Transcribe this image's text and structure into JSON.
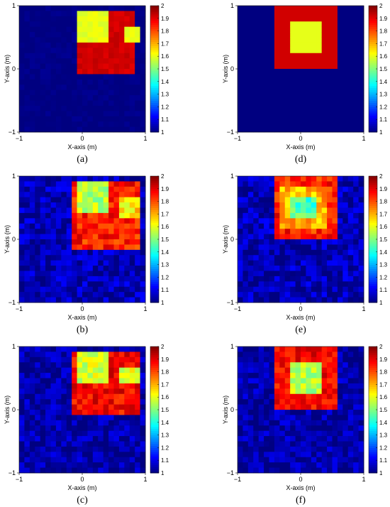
{
  "figure": {
    "colormap": "jet",
    "panels": [
      "(a)",
      "(b)",
      "(c)",
      "(d)",
      "(e)",
      "(f)"
    ]
  },
  "chart_data": [
    {
      "type": "heatmap",
      "label": "(a)",
      "xlabel": "X-axis (m)",
      "ylabel": "Y-axis (m)",
      "xlim": [
        -1,
        1
      ],
      "ylim": [
        -1,
        1
      ],
      "xticks": [
        "−1",
        "0",
        "1"
      ],
      "yticks": [
        "−1",
        "0",
        "1"
      ],
      "colorbar": {
        "min": 1,
        "max": 2,
        "ticks": [
          "1",
          "1.1",
          "1.2",
          "1.3",
          "1.4",
          "1.5",
          "1.6",
          "1.7",
          "1.8",
          "1.9",
          "2"
        ]
      },
      "background": 1.0,
      "regions": [
        {
          "x": [
            -0.1,
            0.85
          ],
          "y": [
            -0.1,
            0.95
          ],
          "value": 1.92
        },
        {
          "x": [
            -0.1,
            0.4
          ],
          "y": [
            0.4,
            0.95
          ],
          "value": 1.6
        },
        {
          "x": [
            0.65,
            0.95
          ],
          "y": [
            0.4,
            0.65
          ],
          "value": 1.6
        }
      ],
      "noise": 0.02
    },
    {
      "type": "heatmap",
      "label": "(b)",
      "xlabel": "X-axis (m)",
      "ylabel": "Y-axis (m)",
      "xlim": [
        -1,
        1
      ],
      "ylim": [
        -1,
        1
      ],
      "xticks": [
        "−1",
        "0",
        "1"
      ],
      "yticks": [
        "−1",
        "0",
        "1"
      ],
      "colorbar": {
        "min": 1,
        "max": 2,
        "ticks": [
          "1",
          "1.1",
          "1.2",
          "1.3",
          "1.4",
          "1.5",
          "1.6",
          "1.7",
          "1.8",
          "1.9",
          "2"
        ]
      },
      "background": 1.05,
      "regions": [
        {
          "x": [
            -0.15,
            0.9
          ],
          "y": [
            -0.15,
            0.95
          ],
          "value": 1.85
        },
        {
          "x": [
            -0.1,
            0.45
          ],
          "y": [
            0.4,
            0.95
          ],
          "value": 1.55
        },
        {
          "x": [
            0.6,
            0.9
          ],
          "y": [
            0.35,
            0.7
          ],
          "value": 1.65
        }
      ],
      "noise": 0.08
    },
    {
      "type": "heatmap",
      "label": "(c)",
      "xlabel": "X-axis (m)",
      "ylabel": "Y-axis (m)",
      "xlim": [
        -1,
        1
      ],
      "ylim": [
        -1,
        1
      ],
      "xticks": [
        "−1",
        "0",
        "1"
      ],
      "yticks": [
        "−1",
        "0",
        "1"
      ],
      "colorbar": {
        "min": 1,
        "max": 2,
        "ticks": [
          "1",
          "1.1",
          "1.2",
          "1.3",
          "1.4",
          "1.5",
          "1.6",
          "1.7",
          "1.8",
          "1.9",
          "2"
        ]
      },
      "background": 1.04,
      "regions": [
        {
          "x": [
            -0.15,
            0.9
          ],
          "y": [
            -0.1,
            0.95
          ],
          "value": 1.88
        },
        {
          "x": [
            -0.1,
            0.4
          ],
          "y": [
            0.4,
            0.95
          ],
          "value": 1.58
        },
        {
          "x": [
            0.6,
            0.9
          ],
          "y": [
            0.4,
            0.65
          ],
          "value": 1.6
        }
      ],
      "noise": 0.07
    },
    {
      "type": "heatmap",
      "label": "(d)",
      "xlabel": "X-axis (m)",
      "ylabel": "Y-axis (m)",
      "xlim": [
        -1,
        1
      ],
      "ylim": [
        -1,
        1
      ],
      "xticks": [
        "−1",
        "0",
        "1"
      ],
      "yticks": [
        "−1",
        "0",
        "1"
      ],
      "colorbar": {
        "min": 1,
        "max": 2,
        "ticks": [
          "1",
          "1.1",
          "1.2",
          "1.3",
          "1.4",
          "1.5",
          "1.6",
          "1.7",
          "1.8",
          "1.9",
          "2"
        ]
      },
      "background": 1.0,
      "regions": [
        {
          "x": [
            -0.45,
            0.55
          ],
          "y": [
            0.0,
            1.0
          ],
          "value": 1.92
        },
        {
          "x": [
            -0.2,
            0.3
          ],
          "y": [
            0.25,
            0.75
          ],
          "value": 1.6
        }
      ],
      "noise": 0.0
    },
    {
      "type": "heatmap",
      "label": "(e)",
      "xlabel": "X-axis (m)",
      "ylabel": "Y-axis (m)",
      "xlim": [
        -1,
        1
      ],
      "ylim": [
        -1,
        1
      ],
      "xticks": [
        "−1",
        "0",
        "1"
      ],
      "yticks": [
        "−1",
        "0",
        "1"
      ],
      "colorbar": {
        "min": 1,
        "max": 2,
        "ticks": [
          "1",
          "1.1",
          "1.2",
          "1.3",
          "1.4",
          "1.5",
          "1.6",
          "1.7",
          "1.8",
          "1.9",
          "2"
        ]
      },
      "background": 1.05,
      "regions": [
        {
          "x": [
            -0.45,
            0.55
          ],
          "y": [
            0.0,
            1.0
          ],
          "value": 1.85
        },
        {
          "x": [
            -0.3,
            0.4
          ],
          "y": [
            0.2,
            0.8
          ],
          "value": 1.7
        },
        {
          "x": [
            -0.15,
            0.25
          ],
          "y": [
            0.35,
            0.7
          ],
          "value": 1.45
        }
      ],
      "noise": 0.08
    },
    {
      "type": "heatmap",
      "label": "(f)",
      "xlabel": "X-axis (m)",
      "ylabel": "Y-axis (m)",
      "xlim": [
        -1,
        1
      ],
      "ylim": [
        -1,
        1
      ],
      "xticks": [
        "−1",
        "0",
        "1"
      ],
      "yticks": [
        "−1",
        "0",
        "1"
      ],
      "colorbar": {
        "min": 1,
        "max": 2,
        "ticks": [
          "1",
          "1.1",
          "1.2",
          "1.3",
          "1.4",
          "1.5",
          "1.6",
          "1.7",
          "1.8",
          "1.9",
          "2"
        ]
      },
      "background": 1.04,
      "regions": [
        {
          "x": [
            -0.45,
            0.55
          ],
          "y": [
            0.0,
            1.0
          ],
          "value": 1.88
        },
        {
          "x": [
            -0.2,
            0.3
          ],
          "y": [
            0.25,
            0.75
          ],
          "value": 1.55
        }
      ],
      "noise": 0.07
    }
  ]
}
